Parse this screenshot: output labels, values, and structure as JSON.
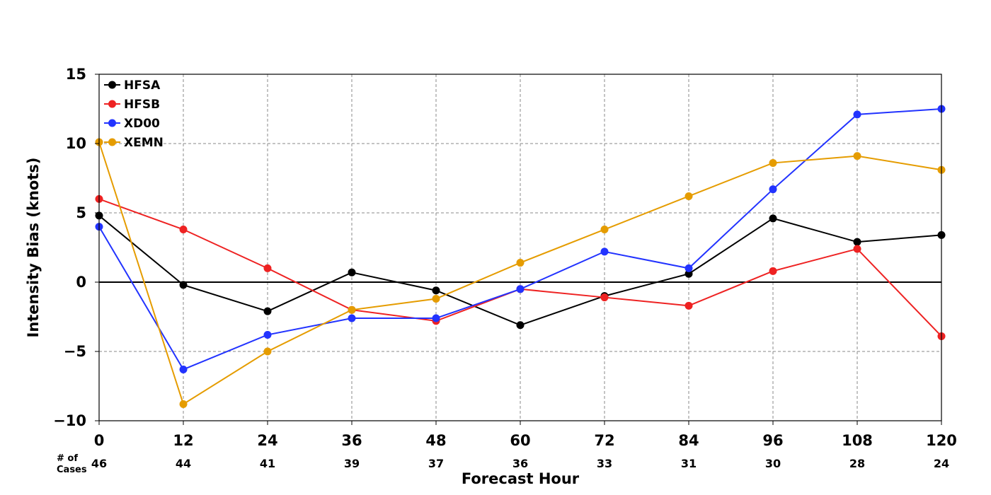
{
  "chart_data": {
    "type": "line",
    "xlabel": "Forecast Hour",
    "ylabel": "Intensity Bias (knots)",
    "x": [
      0,
      12,
      24,
      36,
      48,
      60,
      72,
      84,
      96,
      108,
      120
    ],
    "xticks": [
      "0",
      "12",
      "24",
      "36",
      "48",
      "60",
      "72",
      "84",
      "96",
      "108",
      "120"
    ],
    "yticks": [
      "15",
      "10",
      "5",
      "0",
      "−5",
      "−10"
    ],
    "ytick_values": [
      15,
      10,
      5,
      0,
      -5,
      -10
    ],
    "xlim": [
      0,
      120
    ],
    "ylim": [
      -10,
      15
    ],
    "grid": true,
    "zero_line": true,
    "legend_position": "top-left",
    "cases_title_line1": "# of",
    "cases_title_line2": "Cases",
    "cases": [
      "46",
      "44",
      "41",
      "39",
      "37",
      "36",
      "33",
      "31",
      "30",
      "28",
      "24"
    ],
    "series": [
      {
        "name": "HFSA",
        "color": "#000000",
        "values": [
          4.8,
          -0.2,
          -2.1,
          0.7,
          -0.6,
          -3.1,
          -1.0,
          0.6,
          4.6,
          2.9,
          3.4
        ]
      },
      {
        "name": "HFSB",
        "color": "#ee2222",
        "values": [
          6.0,
          3.8,
          1.0,
          -2.0,
          -2.8,
          -0.5,
          -1.1,
          -1.7,
          0.8,
          2.4,
          -3.9
        ]
      },
      {
        "name": "XD00",
        "color": "#2233ff",
        "values": [
          4.0,
          -6.3,
          -3.8,
          -2.6,
          -2.6,
          -0.5,
          2.2,
          1.0,
          6.7,
          12.1,
          12.5
        ]
      },
      {
        "name": "XEMN",
        "color": "#e59c00",
        "values": [
          10.1,
          -8.8,
          -5.0,
          -2.0,
          -1.2,
          1.4,
          3.8,
          6.2,
          8.6,
          9.1,
          8.1
        ]
      }
    ]
  }
}
